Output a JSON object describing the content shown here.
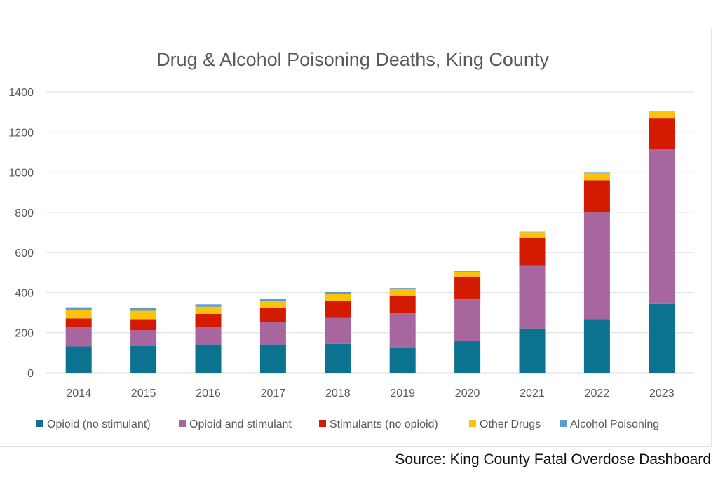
{
  "chart_data": {
    "type": "bar",
    "stacked": true,
    "title": "Drug & Alcohol Poisoning Deaths, King County",
    "xlabel": "",
    "ylabel": "",
    "ylim": [
      0,
      1400
    ],
    "yticks": [
      0,
      200,
      400,
      600,
      800,
      1000,
      1200,
      1400
    ],
    "grid": true,
    "legend_position": "bottom",
    "categories": [
      "2014",
      "2015",
      "2016",
      "2017",
      "2018",
      "2019",
      "2020",
      "2021",
      "2022",
      "2023"
    ],
    "series": [
      {
        "name": "Opioid (no stimulant)",
        "color": "#0b7390",
        "values": [
          131,
          135,
          141,
          141,
          144,
          124,
          159,
          221,
          267,
          343
        ]
      },
      {
        "name": "Opioid and stimulant",
        "color": "#a8669e",
        "values": [
          96,
          78,
          86,
          111,
          129,
          175,
          207,
          314,
          532,
          773
        ]
      },
      {
        "name": "Stimulants (no opioid)",
        "color": "#d41a00",
        "values": [
          44,
          54,
          67,
          72,
          84,
          84,
          113,
          136,
          160,
          151
        ]
      },
      {
        "name": "Other Drugs",
        "color": "#fcc30a",
        "values": [
          41,
          42,
          35,
          32,
          37,
          32,
          24,
          30,
          35,
          32
        ]
      },
      {
        "name": "Alcohol Poisoning",
        "color": "#5b9bd5",
        "values": [
          14,
          14,
          12,
          11,
          8,
          7,
          3,
          2,
          3,
          2
        ]
      }
    ]
  },
  "source": "Source: King County Fatal Overdose Dashboard"
}
